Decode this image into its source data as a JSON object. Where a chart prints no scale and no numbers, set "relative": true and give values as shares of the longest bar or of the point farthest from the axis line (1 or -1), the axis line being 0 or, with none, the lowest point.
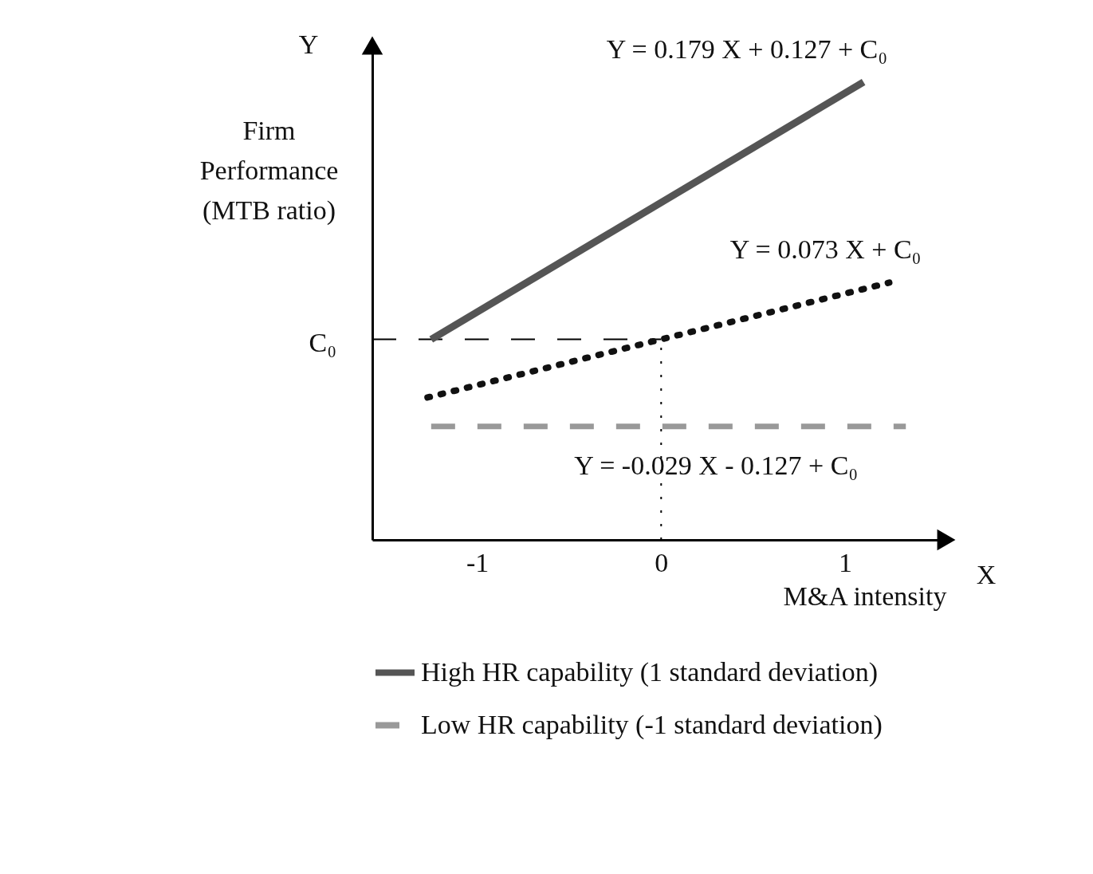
{
  "chart_data": {
    "type": "line",
    "relative": true,
    "xlabel": "M&A intensity",
    "ylabel": "Firm Performance (MTB ratio)",
    "xlim": [
      -1.57,
      1.55
    ],
    "xticks": [
      -1,
      0,
      1
    ],
    "grid": false,
    "marker": "none",
    "legend": "bottom",
    "series": [
      {
        "name": "High HR capability (1 standard deviation)",
        "color": "#555555",
        "line_style": "solid",
        "x": [
          -1.25,
          1.1
        ],
        "values": [
          0.438,
          1
        ]
      },
      {
        "color": "#111111",
        "line_style": "dotted",
        "x": [
          -1.27,
          1.24
        ],
        "values": [
          0.311,
          0.562
        ]
      },
      {
        "name": "Low HR capability (-1 standard deviation)",
        "color": "#999999",
        "line_style": "dashed",
        "x": [
          -1.25,
          1.33
        ],
        "values": [
          0.248,
          0.248
        ]
      }
    ],
    "ref_lines": [
      {
        "axis": "y",
        "value": 0.438,
        "label": "C₀",
        "line_style": "dashed"
      },
      {
        "axis": "x",
        "value": 0,
        "line_style": "dotted"
      }
    ],
    "annotations": [
      {
        "text": "Y = 0.179 X + 0.127 + C₀",
        "x": 1.1,
        "y": 1
      },
      {
        "text": "Y = 0.073 X + C₀",
        "x": 1.24,
        "y": 0.562
      },
      {
        "text": "Y = -0.029 X - 0.127 + C₀",
        "x": 1.33,
        "y": 0.248
      },
      "Y",
      "X"
    ]
  }
}
